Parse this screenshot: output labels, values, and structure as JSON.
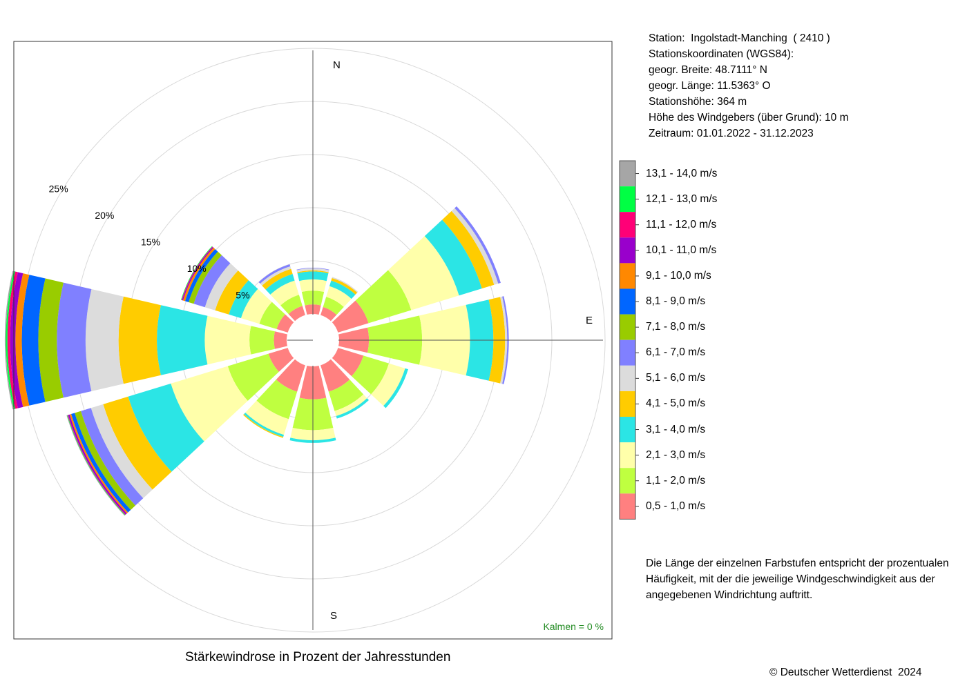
{
  "station_info": {
    "station": "Station:  Ingolstadt-Manching  ( 2410 )",
    "coords_header": "Stationskoordinaten (WGS84):",
    "latitude": "geogr. Breite: 48.7111° N",
    "longitude": "geogr. Länge: 11.5363° O",
    "elevation": "Stationshöhe: 364 m",
    "anemometer_height": "Höhe des Windgebers (über Grund): 10 m",
    "period": "Zeitraum: 01.01.2022 - 31.12.2023"
  },
  "note": "Die Länge der einzelnen Farbstufen entspricht der prozentualen Häufigkeit, mit der die jeweilige Windgeschwindigkeit aus der angegebenen Windrichtung auftritt.",
  "copyright": "© Deutscher Wetterdienst  2024",
  "chart_data": {
    "type": "wind-rose",
    "title": "Stärkewindrose in Prozent der Jahresstunden",
    "calms_label": "Kalmen  =  0 %",
    "compass_labels": [
      "N",
      "E",
      "S"
    ],
    "radial_ticks": [
      5,
      10,
      15,
      20,
      25
    ],
    "radial_tick_labels": [
      "5%",
      "10%",
      "15%",
      "20%",
      "25%"
    ],
    "directions_deg": [
      0,
      30,
      60,
      90,
      120,
      150,
      180,
      210,
      240,
      270,
      300,
      330
    ],
    "classes": [
      {
        "label": "0,5 - 1,0 m/s",
        "color": "#FF8080"
      },
      {
        "label": "1,1 - 2,0 m/s",
        "color": "#BFFF40"
      },
      {
        "label": "2,1 - 3,0 m/s",
        "color": "#FFFFAA"
      },
      {
        "label": "3,1 - 4,0 m/s",
        "color": "#2BE5E5"
      },
      {
        "label": "4,1 - 5,0 m/s",
        "color": "#FFCC00"
      },
      {
        "label": "5,1 - 6,0 m/s",
        "color": "#DCDCDC"
      },
      {
        "label": "6,1 - 7,0 m/s",
        "color": "#8080FF"
      },
      {
        "label": "7,1 - 8,0 m/s",
        "color": "#99CC00"
      },
      {
        "label": "8,1 - 9,0 m/s",
        "color": "#0066FF"
      },
      {
        "label": "9,1 - 10,0 m/s",
        "color": "#FF8800"
      },
      {
        "label": "10,1 - 11,0 m/s",
        "color": "#9900CC"
      },
      {
        "label": "11,1 - 12,0 m/s",
        "color": "#FF0077"
      },
      {
        "label": "12,1 - 13,0 m/s",
        "color": "#00FF44"
      },
      {
        "label": "13,1 - 14,0 m/s",
        "color": "#A6A6A6"
      }
    ],
    "series": [
      {
        "direction": 0,
        "values": [
          0.9,
          1.3,
          1.05,
          0.75,
          0.1,
          0.2,
          0.05,
          0,
          0,
          0,
          0,
          0,
          0,
          0
        ]
      },
      {
        "direction": 30,
        "values": [
          0.8,
          1.0,
          1.05,
          0.55,
          0.25,
          0.1,
          0,
          0,
          0,
          0,
          0,
          0,
          0,
          0
        ]
      },
      {
        "direction": 60,
        "values": [
          3.0,
          4.2,
          4.7,
          2.25,
          1.2,
          0.4,
          0.25,
          0,
          0,
          0,
          0,
          0,
          0,
          0
        ]
      },
      {
        "direction": 90,
        "values": [
          2.8,
          5.0,
          4.5,
          2.2,
          1.1,
          0.2,
          0.15,
          0,
          0,
          0,
          0,
          0,
          0,
          0
        ]
      },
      {
        "direction": 120,
        "values": [
          2.5,
          2.5,
          1.6,
          0.3,
          0,
          0,
          0,
          0,
          0,
          0,
          0,
          0,
          0,
          0
        ]
      },
      {
        "direction": 150,
        "values": [
          2.6,
          1.9,
          0.5,
          0.25,
          0,
          0,
          0,
          0,
          0,
          0,
          0,
          0,
          0,
          0
        ]
      },
      {
        "direction": 180,
        "values": [
          3.1,
          2.9,
          0.95,
          0.25,
          0,
          0,
          0,
          0,
          0,
          0,
          0,
          0,
          0,
          0
        ]
      },
      {
        "direction": 210,
        "values": [
          2.6,
          2.7,
          1.55,
          0.2,
          0.1,
          0,
          0,
          0,
          0,
          0,
          0,
          0,
          0,
          0
        ]
      },
      {
        "direction": 240,
        "values": [
          1.9,
          4.0,
          5.6,
          4.2,
          2.45,
          1.2,
          1.0,
          0.6,
          0.35,
          0.15,
          0.15,
          0.05,
          0.05,
          0.05
        ]
      },
      {
        "direction": 270,
        "values": [
          1.2,
          2.3,
          4.2,
          4.5,
          3.6,
          3.1,
          2.7,
          1.75,
          1.55,
          0.6,
          0.5,
          0.25,
          0.15,
          0.1
        ]
      },
      {
        "direction": 300,
        "values": [
          1.1,
          1.7,
          1.8,
          1.2,
          1.35,
          1.0,
          1.1,
          0.5,
          0.35,
          0.2,
          0.1,
          0.05,
          0.05,
          0
        ]
      },
      {
        "direction": 330,
        "values": [
          0.9,
          1.1,
          1.4,
          0.65,
          0.5,
          0.25,
          0.2,
          0,
          0,
          0,
          0,
          0,
          0,
          0
        ]
      }
    ]
  }
}
